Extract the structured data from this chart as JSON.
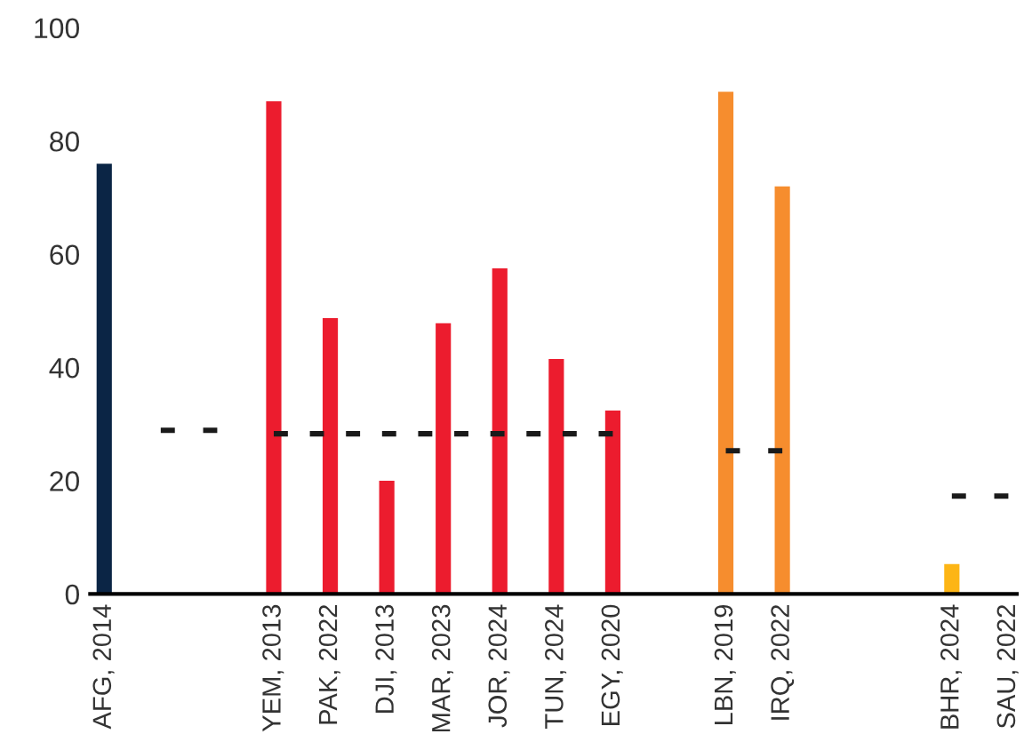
{
  "chart_data": {
    "type": "bar",
    "categories": [
      "AFG, 2014",
      null,
      null,
      "YEM, 2013",
      "PAK, 2022",
      "DJI, 2013",
      "MAR, 2023",
      "JOR, 2024",
      "TUN, 2024",
      "EGY, 2020",
      null,
      "LBN, 2019",
      "IRQ, 2022",
      null,
      null,
      "BHR, 2024",
      "SAU, 2022"
    ],
    "series": [
      {
        "values": [
          76,
          null,
          null,
          87,
          48.7,
          20,
          47.8,
          57.5,
          41.5,
          32.4,
          null,
          88.7,
          72,
          null,
          null,
          5.3,
          null
        ],
        "colors": [
          "#0b2545",
          null,
          null,
          "#ec1c2e",
          "#ec1c2e",
          "#ec1c2e",
          "#ec1c2e",
          "#ec1c2e",
          "#ec1c2e",
          "#ec1c2e",
          null,
          "#f68d2e",
          "#f68d2e",
          null,
          null,
          "#fdb515",
          null
        ]
      },
      {
        "type": "line",
        "color": "#1a1a1a",
        "line_style": "dashed",
        "values": [
          null,
          28.9,
          28.9,
          null,
          null,
          null,
          null,
          null,
          null,
          null,
          null,
          null,
          null,
          null,
          null,
          null,
          null
        ]
      },
      {
        "type": "line",
        "color": "#1a1a1a",
        "line_style": "dashed",
        "values": [
          null,
          null,
          null,
          28.3,
          28.3,
          28.3,
          28.3,
          28.3,
          28.3,
          28.3,
          null,
          null,
          null,
          null,
          null,
          null,
          null
        ]
      },
      {
        "type": "line",
        "color": "#1a1a1a",
        "line_style": "dashed",
        "values": [
          null,
          null,
          null,
          null,
          null,
          null,
          null,
          null,
          null,
          null,
          null,
          25.3,
          25.3,
          null,
          null,
          null,
          null
        ]
      },
      {
        "type": "line",
        "color": "#1a1a1a",
        "line_style": "dashed",
        "values": [
          null,
          null,
          null,
          null,
          null,
          null,
          null,
          null,
          null,
          null,
          null,
          null,
          null,
          null,
          null,
          17.3,
          17.3
        ]
      }
    ],
    "ylim": [
      0,
      100
    ],
    "yticks": [
      0,
      20,
      40,
      60,
      80,
      100
    ],
    "grid": false,
    "legend": false
  }
}
